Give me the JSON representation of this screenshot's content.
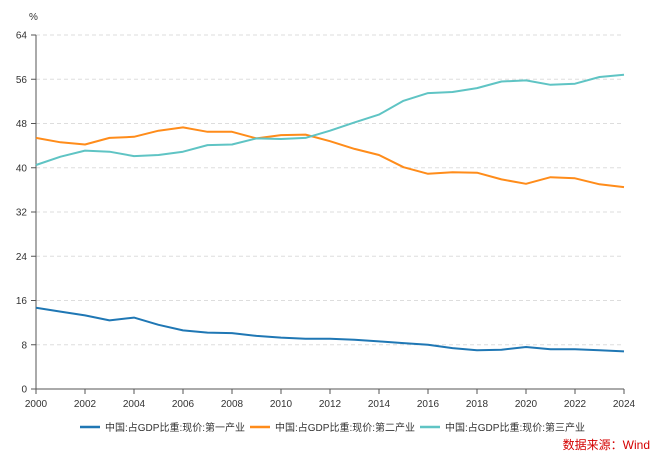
{
  "chart_data": {
    "type": "line",
    "title": "",
    "ylabel": "%",
    "xlabel": "",
    "ylim": [
      0,
      64
    ],
    "yticks": [
      0,
      8,
      16,
      24,
      32,
      40,
      48,
      56,
      64
    ],
    "xlim": [
      2000,
      2024
    ],
    "xticks": [
      2000,
      2002,
      2004,
      2006,
      2008,
      2010,
      2012,
      2014,
      2016,
      2018,
      2020,
      2022,
      2024
    ],
    "grid": true,
    "legend_position": "bottom",
    "x": [
      2000,
      2001,
      2002,
      2003,
      2004,
      2005,
      2006,
      2007,
      2008,
      2009,
      2010,
      2011,
      2012,
      2013,
      2014,
      2015,
      2016,
      2017,
      2018,
      2019,
      2020,
      2021,
      2022,
      2023,
      2024
    ],
    "series": [
      {
        "name": "中国:占GDP比重:现价:第一产业",
        "color": "#1f77b4",
        "values": [
          14.7,
          14.0,
          13.3,
          12.4,
          12.9,
          11.6,
          10.6,
          10.2,
          10.1,
          9.6,
          9.3,
          9.1,
          9.1,
          8.9,
          8.6,
          8.3,
          8.0,
          7.4,
          7.0,
          7.1,
          7.6,
          7.2,
          7.2,
          7.0,
          6.8
        ]
      },
      {
        "name": "中国:占GDP比重:现价:第二产业",
        "color": "#ff8c1a",
        "values": [
          45.4,
          44.6,
          44.2,
          45.4,
          45.6,
          46.7,
          47.3,
          46.5,
          46.5,
          45.3,
          45.9,
          46.0,
          44.8,
          43.4,
          42.3,
          40.1,
          38.9,
          39.2,
          39.1,
          37.9,
          37.1,
          38.3,
          38.1,
          37.0,
          36.5
        ]
      },
      {
        "name": "中国:占GDP比重:现价:第三产业",
        "color": "#5fc4c4",
        "values": [
          40.5,
          42.0,
          43.1,
          42.9,
          42.1,
          42.3,
          42.9,
          44.1,
          44.2,
          45.3,
          45.2,
          45.4,
          46.7,
          48.2,
          49.6,
          52.1,
          53.5,
          53.7,
          54.4,
          55.6,
          55.8,
          55.0,
          55.2,
          56.4,
          56.8
        ]
      }
    ],
    "source": "数据来源：Wind"
  }
}
